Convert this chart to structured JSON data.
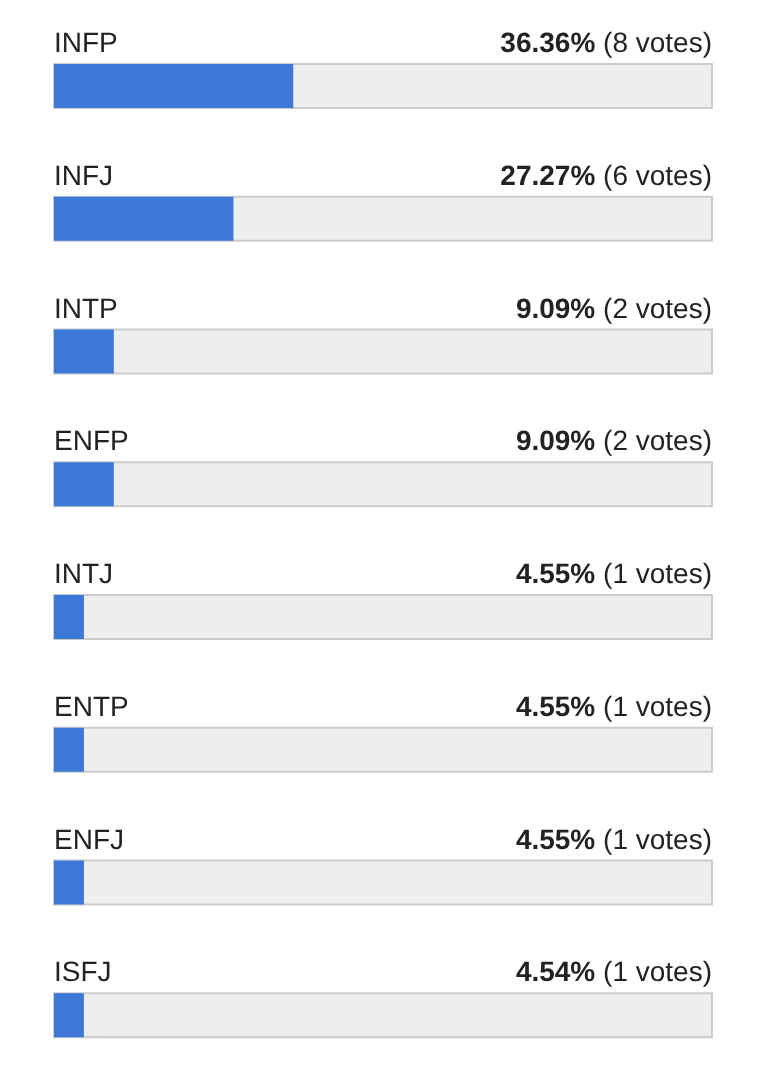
{
  "chart_data": {
    "type": "bar",
    "orientation": "horizontal",
    "categories": [
      "INFP",
      "INFJ",
      "INTP",
      "ENFP",
      "INTJ",
      "ENTP",
      "ENFJ",
      "ISFJ"
    ],
    "values": [
      36.36,
      27.27,
      9.09,
      9.09,
      4.55,
      4.55,
      4.55,
      4.54
    ],
    "value_labels": [
      "36.36% (8 votes)",
      "27.27% (6 votes)",
      "9.09% (2 votes)",
      "9.09% (2 votes)",
      "4.55% (1 votes)",
      "4.55% (1 votes)",
      "4.55% (1 votes)",
      "4.54% (1 votes)"
    ],
    "color": "#3c78d8",
    "xlim": [
      0,
      100
    ],
    "tick_labels": "y",
    "grid": false,
    "legend": false
  }
}
